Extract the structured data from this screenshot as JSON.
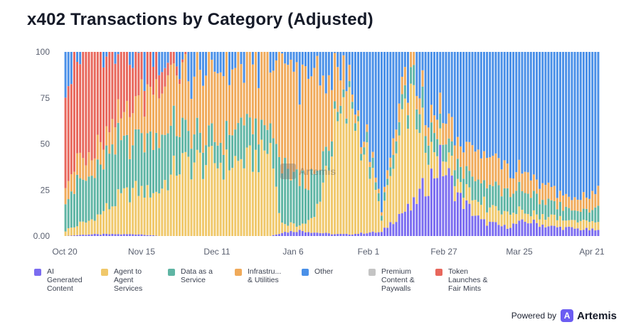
{
  "title": "x402 Transactions by Category (Adjusted)",
  "chart_data": {
    "type": "bar",
    "stacked": true,
    "normalized": true,
    "ylim": [
      0,
      100
    ],
    "yticks": [
      "0.00",
      "25",
      "50",
      "75",
      "100"
    ],
    "xticks": [
      "Oct 20",
      "Nov 15",
      "Dec 11",
      "Jan 6",
      "Feb 1",
      "Feb 27",
      "Mar 25",
      "Apr 21"
    ],
    "grid": false,
    "legend_position": "bottom",
    "bar_count": 183,
    "series": [
      {
        "name": "AI\nGenerated\nContent",
        "color": "#7b6cf0"
      },
      {
        "name": "Agent to\nAgent\nServices",
        "color": "#f0c86a"
      },
      {
        "name": "Data as a\nService",
        "color": "#5fb5a4"
      },
      {
        "name": "Infrastru...\n& Utilities",
        "color": "#f0aa5a"
      },
      {
        "name": "Other",
        "color": "#4a90e8"
      },
      {
        "name": "Premium\nContent &\nPaywalls",
        "color": "#c4c4c4"
      },
      {
        "name": "Token\nLaunches &\nFair Mints",
        "color": "#e8675c"
      }
    ],
    "keyframes": [
      {
        "day": 0,
        "ai": 0,
        "a2a": 3,
        "daas": 20,
        "infra": 10,
        "prem": 0,
        "token": 65
      },
      {
        "day": 8,
        "ai": 1,
        "a2a": 8,
        "daas": 25,
        "infra": 12,
        "prem": 0,
        "token": 54
      },
      {
        "day": 15,
        "ai": 1,
        "a2a": 15,
        "daas": 28,
        "infra": 14,
        "prem": 0,
        "token": 40
      },
      {
        "day": 20,
        "ai": 1,
        "a2a": 22,
        "daas": 30,
        "infra": 17,
        "prem": 0,
        "token": 28
      },
      {
        "day": 26,
        "ai": 1,
        "a2a": 25,
        "daas": 30,
        "infra": 25,
        "prem": 0,
        "token": 18
      },
      {
        "day": 32,
        "ai": 0,
        "a2a": 25,
        "daas": 33,
        "infra": 27,
        "prem": 0,
        "token": 12
      },
      {
        "day": 38,
        "ai": 0,
        "a2a": 38,
        "daas": 22,
        "infra": 30,
        "prem": 0,
        "token": 4
      },
      {
        "day": 42,
        "ai": 0,
        "a2a": 40,
        "daas": 18,
        "infra": 35,
        "prem": 0,
        "token": 0
      },
      {
        "day": 48,
        "ai": 0,
        "a2a": 40,
        "daas": 10,
        "infra": 40,
        "prem": 0,
        "token": 0
      },
      {
        "day": 55,
        "ai": 0,
        "a2a": 40,
        "daas": 15,
        "infra": 35,
        "prem": 0,
        "token": 0
      },
      {
        "day": 62,
        "ai": 0,
        "a2a": 42,
        "daas": 20,
        "infra": 30,
        "prem": 0,
        "token": 0
      },
      {
        "day": 70,
        "ai": 0,
        "a2a": 48,
        "daas": 10,
        "infra": 37,
        "prem": 0,
        "token": 0
      },
      {
        "day": 74,
        "ai": 2,
        "a2a": 5,
        "daas": 30,
        "infra": 53,
        "prem": 0,
        "token": 0
      },
      {
        "day": 80,
        "ai": 3,
        "a2a": 3,
        "daas": 25,
        "infra": 60,
        "prem": 0,
        "token": 0
      },
      {
        "day": 85,
        "ai": 2,
        "a2a": 8,
        "daas": 20,
        "infra": 55,
        "prem": 0,
        "token": 0
      },
      {
        "day": 92,
        "ai": 1,
        "a2a": 55,
        "daas": 5,
        "infra": 25,
        "prem": 0,
        "token": 0
      },
      {
        "day": 98,
        "ai": 1,
        "a2a": 70,
        "daas": 3,
        "infra": 5,
        "prem": 0,
        "token": 0
      },
      {
        "day": 104,
        "ai": 2,
        "a2a": 35,
        "daas": 5,
        "infra": 3,
        "prem": 0,
        "token": 0
      },
      {
        "day": 108,
        "ai": 2,
        "a2a": 8,
        "daas": 3,
        "infra": 2,
        "prem": 0,
        "token": 0
      },
      {
        "day": 114,
        "ai": 12,
        "a2a": 40,
        "daas": 8,
        "infra": 10,
        "prem": 0,
        "token": 0
      },
      {
        "day": 118,
        "ai": 15,
        "a2a": 60,
        "daas": 10,
        "infra": 8,
        "prem": 0,
        "token": 0
      },
      {
        "day": 124,
        "ai": 30,
        "a2a": 15,
        "daas": 10,
        "infra": 8,
        "prem": 0,
        "token": 0
      },
      {
        "day": 128,
        "ai": 40,
        "a2a": 10,
        "daas": 10,
        "infra": 10,
        "prem": 0,
        "token": 0
      },
      {
        "day": 135,
        "ai": 20,
        "a2a": 8,
        "daas": 10,
        "infra": 12,
        "prem": 0,
        "token": 0
      },
      {
        "day": 142,
        "ai": 8,
        "a2a": 10,
        "daas": 12,
        "infra": 15,
        "prem": 0,
        "token": 0
      },
      {
        "day": 150,
        "ai": 5,
        "a2a": 8,
        "daas": 12,
        "infra": 12,
        "prem": 0,
        "token": 0
      },
      {
        "day": 158,
        "ai": 8,
        "a2a": 5,
        "daas": 10,
        "infra": 10,
        "prem": 0,
        "token": 0
      },
      {
        "day": 166,
        "ai": 5,
        "a2a": 5,
        "daas": 8,
        "infra": 8,
        "prem": 0,
        "token": 0
      },
      {
        "day": 174,
        "ai": 4,
        "a2a": 4,
        "daas": 5,
        "infra": 6,
        "prem": 0,
        "token": 0
      },
      {
        "day": 182,
        "ai": 3,
        "a2a": 5,
        "daas": 7,
        "infra": 10,
        "prem": 0,
        "token": 0
      }
    ]
  },
  "watermark": {
    "text": "Artemis"
  },
  "footer": {
    "powered_by": "Powered by",
    "brand": "Artemis",
    "logo_letter": "A"
  }
}
